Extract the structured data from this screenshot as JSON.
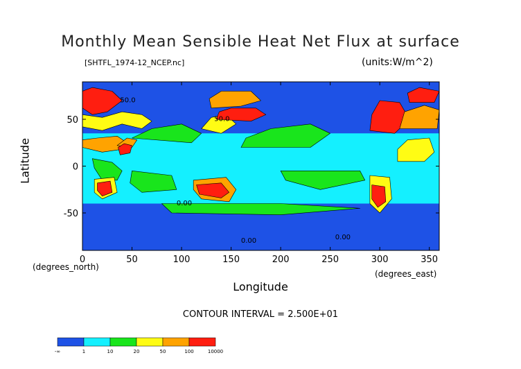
{
  "chart_data": {
    "type": "heatmap",
    "title": "Monthly Mean Sensible Heat Net Flux at surface",
    "subtitle": "[SHTFL_1974-12_NCEP.nc]",
    "units": "(units:W/m^2)",
    "xlabel": "Longitude",
    "ylabel": "Latitude",
    "x_units": "(degrees_east)",
    "y_units": "(degrees_north)",
    "xlim": [
      0,
      360
    ],
    "ylim": [
      -90,
      90
    ],
    "x_ticks": [
      0,
      50,
      100,
      150,
      200,
      250,
      300,
      350
    ],
    "y_ticks": [
      -50,
      0,
      50
    ],
    "contour_interval": "CONTOUR INTERVAL = 2.500E+01",
    "contour_labels": [
      {
        "text": "50.0",
        "x": 38,
        "y": 68
      },
      {
        "text": "50.0",
        "x": 133,
        "y": 48
      },
      {
        "text": "0.00",
        "x": 95,
        "y": -42
      },
      {
        "text": "0.00",
        "x": 160,
        "y": -82
      },
      {
        "text": "0.00",
        "x": 255,
        "y": -78
      }
    ],
    "colorbar": {
      "levels": [
        "-∞",
        "1",
        "10",
        "20",
        "50",
        "100",
        "10000"
      ],
      "colors": [
        "#1e52e6",
        "#14f0ff",
        "#19e51c",
        "#fffc14",
        "#ffa300",
        "#ff1e10"
      ]
    },
    "regions": [
      {
        "level": 5,
        "lon_lat": [
          [
            0,
            62
          ],
          [
            10,
            55
          ],
          [
            25,
            58
          ],
          [
            40,
            70
          ],
          [
            30,
            80
          ],
          [
            10,
            84
          ],
          [
            0,
            80
          ]
        ]
      },
      {
        "level": 3,
        "lon_lat": [
          [
            0,
            42
          ],
          [
            20,
            38
          ],
          [
            40,
            45
          ],
          [
            60,
            40
          ],
          [
            70,
            48
          ],
          [
            60,
            55
          ],
          [
            40,
            58
          ],
          [
            20,
            52
          ],
          [
            0,
            55
          ]
        ]
      },
      {
        "level": 4,
        "lon_lat": [
          [
            0,
            20
          ],
          [
            20,
            15
          ],
          [
            40,
            18
          ],
          [
            45,
            25
          ],
          [
            35,
            32
          ],
          [
            15,
            30
          ],
          [
            0,
            28
          ]
        ]
      },
      {
        "level": 2,
        "lon_lat": [
          [
            50,
            30
          ],
          [
            110,
            25
          ],
          [
            120,
            35
          ],
          [
            100,
            45
          ],
          [
            70,
            40
          ]
        ]
      },
      {
        "level": 4,
        "lon_lat": [
          [
            35,
            22
          ],
          [
            50,
            20
          ],
          [
            55,
            28
          ],
          [
            45,
            30
          ]
        ]
      },
      {
        "level": 5,
        "lon_lat": [
          [
            38,
            12
          ],
          [
            48,
            14
          ],
          [
            50,
            22
          ],
          [
            42,
            24
          ],
          [
            36,
            20
          ]
        ]
      },
      {
        "level": 2,
        "lon_lat": [
          [
            10,
            8
          ],
          [
            30,
            4
          ],
          [
            40,
            -5
          ],
          [
            35,
            -15
          ],
          [
            20,
            -15
          ],
          [
            12,
            -2
          ]
        ]
      },
      {
        "level": 3,
        "lon_lat": [
          [
            12,
            -14
          ],
          [
            32,
            -12
          ],
          [
            35,
            -28
          ],
          [
            20,
            -35
          ],
          [
            12,
            -28
          ]
        ]
      },
      {
        "level": 5,
        "lon_lat": [
          [
            15,
            -18
          ],
          [
            28,
            -16
          ],
          [
            30,
            -28
          ],
          [
            20,
            -32
          ],
          [
            15,
            -26
          ]
        ]
      },
      {
        "level": 2,
        "lon_lat": [
          [
            50,
            -5
          ],
          [
            90,
            -10
          ],
          [
            95,
            -25
          ],
          [
            60,
            -28
          ],
          [
            48,
            -18
          ]
        ]
      },
      {
        "level": 4,
        "lon_lat": [
          [
            112,
            -15
          ],
          [
            145,
            -12
          ],
          [
            155,
            -25
          ],
          [
            148,
            -38
          ],
          [
            120,
            -35
          ],
          [
            112,
            -25
          ]
        ]
      },
      {
        "level": 5,
        "lon_lat": [
          [
            115,
            -20
          ],
          [
            140,
            -18
          ],
          [
            148,
            -28
          ],
          [
            140,
            -34
          ],
          [
            118,
            -30
          ]
        ]
      },
      {
        "level": 3,
        "lon_lat": [
          [
            120,
            40
          ],
          [
            140,
            35
          ],
          [
            155,
            45
          ],
          [
            145,
            55
          ],
          [
            130,
            52
          ]
        ]
      },
      {
        "level": 5,
        "lon_lat": [
          [
            135,
            50
          ],
          [
            170,
            48
          ],
          [
            185,
            55
          ],
          [
            175,
            62
          ],
          [
            150,
            62
          ],
          [
            138,
            58
          ]
        ]
      },
      {
        "level": 4,
        "lon_lat": [
          [
            130,
            62
          ],
          [
            160,
            64
          ],
          [
            180,
            70
          ],
          [
            170,
            80
          ],
          [
            140,
            80
          ],
          [
            128,
            72
          ]
        ]
      },
      {
        "level": 2,
        "lon_lat": [
          [
            160,
            20
          ],
          [
            230,
            20
          ],
          [
            250,
            35
          ],
          [
            230,
            45
          ],
          [
            190,
            40
          ],
          [
            165,
            30
          ]
        ]
      },
      {
        "level": 2,
        "lon_lat": [
          [
            200,
            -5
          ],
          [
            280,
            -5
          ],
          [
            285,
            -15
          ],
          [
            240,
            -25
          ],
          [
            205,
            -15
          ]
        ]
      },
      {
        "level": 5,
        "lon_lat": [
          [
            290,
            38
          ],
          [
            315,
            35
          ],
          [
            330,
            50
          ],
          [
            320,
            68
          ],
          [
            300,
            70
          ],
          [
            292,
            55
          ]
        ]
      },
      {
        "level": 4,
        "lon_lat": [
          [
            320,
            40
          ],
          [
            358,
            40
          ],
          [
            360,
            60
          ],
          [
            345,
            65
          ],
          [
            325,
            58
          ]
        ]
      },
      {
        "level": 5,
        "lon_lat": [
          [
            330,
            68
          ],
          [
            355,
            68
          ],
          [
            360,
            80
          ],
          [
            340,
            84
          ],
          [
            328,
            78
          ]
        ]
      },
      {
        "level": 3,
        "lon_lat": [
          [
            318,
            5
          ],
          [
            345,
            5
          ],
          [
            355,
            15
          ],
          [
            350,
            30
          ],
          [
            328,
            28
          ],
          [
            318,
            18
          ]
        ]
      },
      {
        "level": 3,
        "lon_lat": [
          [
            290,
            -10
          ],
          [
            310,
            -12
          ],
          [
            312,
            -35
          ],
          [
            300,
            -50
          ],
          [
            290,
            -40
          ]
        ]
      },
      {
        "level": 5,
        "lon_lat": [
          [
            292,
            -20
          ],
          [
            305,
            -22
          ],
          [
            306,
            -38
          ],
          [
            298,
            -44
          ],
          [
            292,
            -35
          ]
        ]
      },
      {
        "level": 2,
        "lon_lat": [
          [
            80,
            -40
          ],
          [
            200,
            -40
          ],
          [
            280,
            -45
          ],
          [
            200,
            -52
          ],
          [
            90,
            -50
          ]
        ]
      }
    ]
  }
}
